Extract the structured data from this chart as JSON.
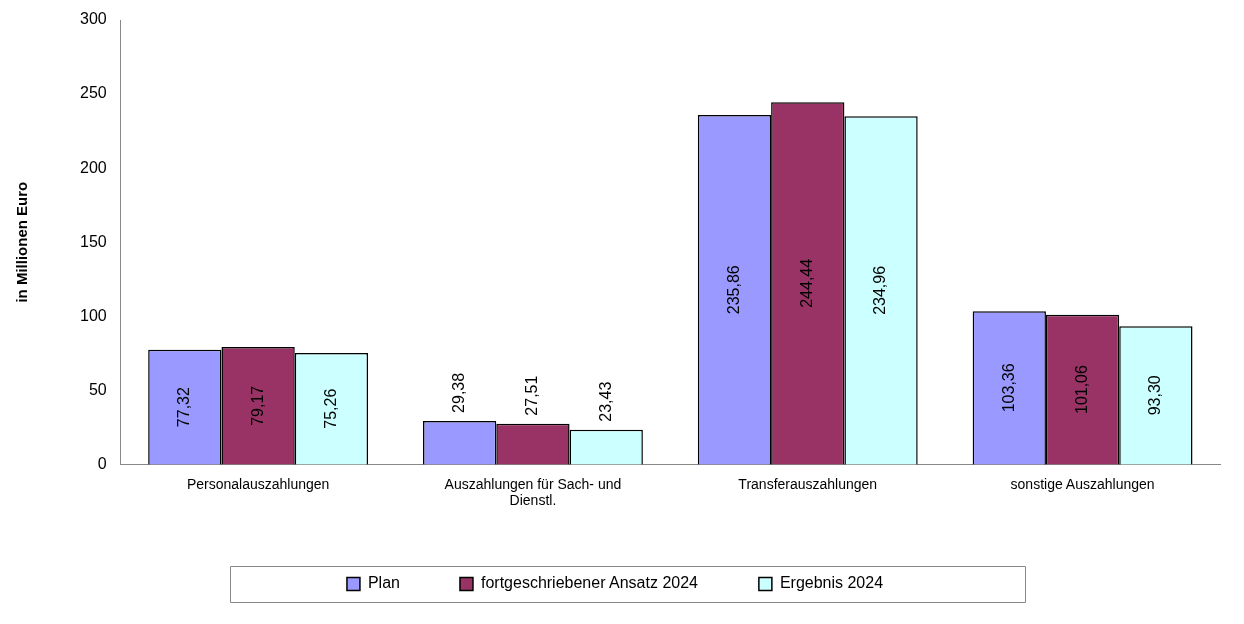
{
  "chart_data": {
    "type": "bar",
    "ylabel": "in Millionen Euro",
    "categories": [
      "Personalauszahlungen",
      "Auszahlungen für Sach- und Dienstl.",
      "Transferauszahlungen",
      "sonstige Auszahlungen"
    ],
    "series": [
      {
        "name": "Plan",
        "color": "#9999ff",
        "values": [
          77.32,
          29.38,
          235.86,
          103.36
        ],
        "value_labels": [
          "77,32",
          "29,38",
          "235,86",
          "103,36"
        ]
      },
      {
        "name": "fortgeschriebener Ansatz 2024",
        "color": "#993366",
        "values": [
          79.17,
          27.51,
          244.44,
          101.06
        ],
        "value_labels": [
          "79,17",
          "27,51",
          "244,44",
          "101,06"
        ]
      },
      {
        "name": "Ergebnis 2024",
        "color": "#ccffff",
        "values": [
          75.26,
          23.43,
          234.96,
          93.3
        ],
        "value_labels": [
          "75,26",
          "23,43",
          "234,96",
          "93,30"
        ]
      }
    ],
    "ylim": [
      0,
      300
    ],
    "yticks": [
      0,
      50,
      100,
      150,
      200,
      250,
      300
    ],
    "grid": false,
    "legend": "bottom"
  }
}
